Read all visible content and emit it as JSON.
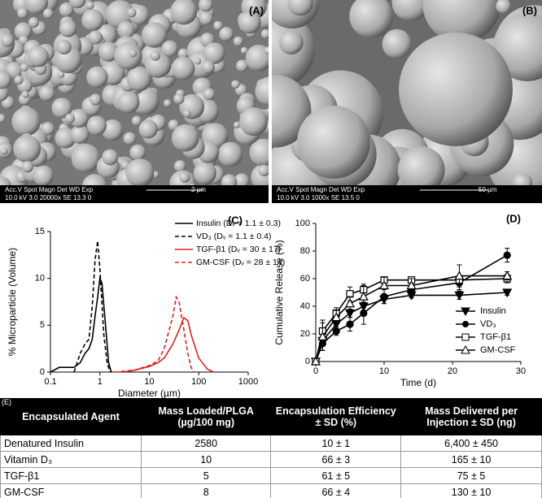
{
  "panels": [
    {
      "label": "(A)",
      "info_header": "Acc.V  Spot Magn   Det  WD  Exp",
      "info_values": "10.0 kV 3.0  20000x   SE  13.3  0",
      "scale": "2 µm"
    },
    {
      "label": "(B)",
      "info_header": "Acc.V  Spot Magn   Det  WD  Exp",
      "info_values": "10.0 kV 3.0  1000x    SE  13.5  0",
      "scale": "50 µm"
    }
  ],
  "chart_data": [
    {
      "type": "line",
      "panel_label": "(C)",
      "x_label": "Diameter (µm)",
      "y_label": "% Microparticle (Volume)",
      "xscale": "log",
      "xlim": [
        0.1,
        1000
      ],
      "xticks": [
        0.1,
        1,
        10,
        100,
        1000
      ],
      "ylim": [
        0,
        15
      ],
      "yticks": [
        0,
        5,
        10,
        15
      ],
      "series": [
        {
          "name": "Insulin (Dᵥ = 1.1 ± 0.3)",
          "color": "#000000",
          "dash": false,
          "x": [
            0.1,
            0.15,
            0.2,
            0.3,
            0.4,
            0.5,
            0.6,
            0.7,
            0.8,
            0.9,
            1.0,
            1.1,
            1.3,
            1.5,
            1.7
          ],
          "values": [
            0,
            0.5,
            0.5,
            0.5,
            1,
            2,
            2.5,
            3.5,
            6,
            8,
            10,
            9.5,
            5,
            1,
            0
          ]
        },
        {
          "name": "VD₃ (Dᵥ = 1.1 ± 0.4)",
          "color": "#000000",
          "dash": true,
          "x": [
            0.3,
            0.4,
            0.5,
            0.6,
            0.7,
            0.8,
            0.9,
            1.0,
            1.2,
            1.4,
            1.6
          ],
          "values": [
            0,
            2,
            3,
            3.5,
            7,
            12,
            14,
            11,
            4,
            1,
            0
          ]
        },
        {
          "name": "TGF-β1 (Dᵥ = 30 ± 17)",
          "color": "#e02020",
          "dash": false,
          "x": [
            3,
            5,
            10,
            15,
            20,
            30,
            40,
            50,
            60,
            70,
            100,
            150,
            200
          ],
          "values": [
            0,
            0.2,
            0.6,
            1,
            1.5,
            3,
            4.5,
            5.8,
            5.5,
            4,
            1.5,
            0.3,
            0
          ]
        },
        {
          "name": "GM-CSF (Dᵥ = 28 ± 14)",
          "color": "#e02020",
          "dash": true,
          "x": [
            2,
            5,
            10,
            15,
            20,
            30,
            35,
            40,
            50,
            60,
            70,
            80
          ],
          "values": [
            0,
            0.2,
            0.7,
            1.2,
            2.5,
            6,
            8,
            7.5,
            4.5,
            2,
            0.5,
            0
          ]
        }
      ]
    },
    {
      "type": "line",
      "panel_label": "(D)",
      "x_label": "Time (d)",
      "y_label": "Cumulative Release (%)",
      "xlim": [
        0,
        30
      ],
      "xticks": [
        0,
        10,
        20,
        30
      ],
      "ylim": [
        0,
        100
      ],
      "yticks": [
        0,
        20,
        40,
        60,
        80,
        100
      ],
      "x": [
        0,
        1,
        3,
        5,
        7,
        10,
        14,
        21,
        28
      ],
      "series": [
        {
          "name": "Insulin",
          "color": "#000000",
          "marker": "triangle-down",
          "values": [
            0,
            15,
            27,
            35,
            40,
            45,
            48,
            48,
            50
          ],
          "errors": [
            0,
            3,
            3,
            3,
            3,
            3,
            2,
            3,
            2
          ]
        },
        {
          "name": "VD₃",
          "color": "#000000",
          "marker": "circle",
          "values": [
            0,
            13,
            22,
            27,
            35,
            47,
            52,
            57,
            77
          ],
          "errors": [
            0,
            5,
            3,
            5,
            8,
            5,
            5,
            5,
            5
          ]
        },
        {
          "name": "TGF-β1",
          "color": "#000000",
          "marker": "square-open",
          "values": [
            0,
            22,
            35,
            49,
            52,
            59,
            59,
            59,
            60
          ],
          "errors": [
            0,
            8,
            4,
            5,
            4,
            2,
            2,
            3,
            3
          ]
        },
        {
          "name": "GM-CSF",
          "color": "#000000",
          "marker": "triangle-up",
          "values": [
            0,
            18,
            32,
            42,
            47,
            55,
            55,
            62,
            62
          ],
          "errors": [
            0,
            10,
            5,
            5,
            8,
            6,
            5,
            8,
            3
          ]
        }
      ]
    }
  ],
  "table": {
    "label": "(E)",
    "header": [
      "Encapsulated Agent",
      "Mass Loaded/PLGA (µg/100 mg)",
      "Encapsulation Efficiency ± SD (%)",
      "Mass Delivered per Injection ± SD (ng)"
    ],
    "rows": [
      [
        "Denatured Insulin",
        "2580",
        "10 ± 1",
        "6,400 ± 450"
      ],
      [
        "Vitamin D₃",
        "10",
        "66 ± 3",
        "165 ± 10"
      ],
      [
        "TGF-β1",
        "5",
        "61 ± 5",
        "75 ± 5"
      ],
      [
        "GM-CSF",
        "8",
        "66 ± 4",
        "130 ± 10"
      ]
    ]
  }
}
